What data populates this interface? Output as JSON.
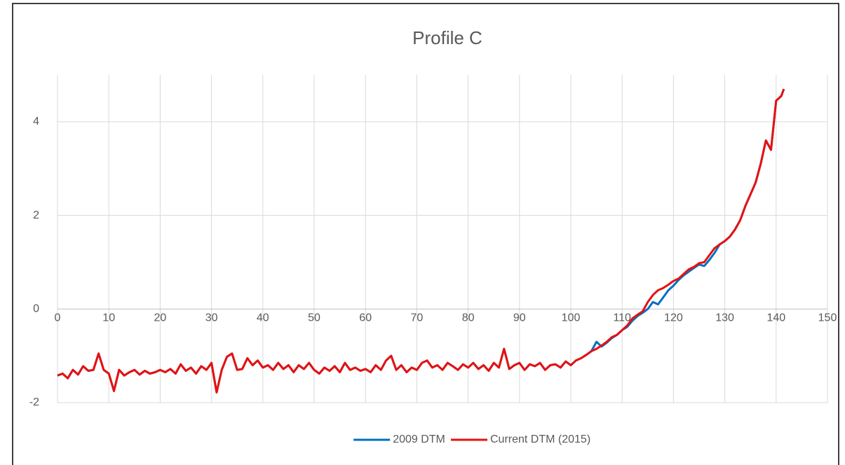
{
  "chart_data": {
    "type": "line",
    "title": "Profile C",
    "x": [
      0,
      1,
      2,
      3,
      4,
      5,
      6,
      7,
      8,
      9,
      10,
      11,
      12,
      13,
      14,
      15,
      16,
      17,
      18,
      19,
      20,
      21,
      22,
      23,
      24,
      25,
      26,
      27,
      28,
      29,
      30,
      31,
      32,
      33,
      34,
      35,
      36,
      37,
      38,
      39,
      40,
      41,
      42,
      43,
      44,
      45,
      46,
      47,
      48,
      49,
      50,
      51,
      52,
      53,
      54,
      55,
      56,
      57,
      58,
      59,
      60,
      61,
      62,
      63,
      64,
      65,
      66,
      67,
      68,
      69,
      70,
      71,
      72,
      73,
      74,
      75,
      76,
      77,
      78,
      79,
      80,
      81,
      82,
      83,
      84,
      85,
      86,
      87,
      88,
      89,
      90,
      91,
      92,
      93,
      94,
      95,
      96,
      97,
      98,
      99,
      100,
      101,
      102,
      103,
      104,
      105,
      106,
      107,
      108,
      109,
      110,
      111,
      112,
      113,
      114,
      115,
      116,
      117,
      118,
      119,
      120,
      121,
      122,
      123,
      124,
      125,
      126,
      127,
      128,
      129,
      130,
      131,
      132,
      133,
      134,
      135,
      136,
      137,
      138,
      139,
      140,
      141,
      141.5
    ],
    "series": [
      {
        "name": "2009 DTM",
        "color": "#0070c0",
        "values": [
          -1.42,
          -1.38,
          -1.48,
          -1.3,
          -1.4,
          -1.22,
          -1.32,
          -1.3,
          -0.95,
          -1.3,
          -1.38,
          -1.75,
          -1.3,
          -1.42,
          -1.35,
          -1.3,
          -1.4,
          -1.32,
          -1.38,
          -1.35,
          -1.3,
          -1.35,
          -1.28,
          -1.38,
          -1.18,
          -1.32,
          -1.25,
          -1.38,
          -1.22,
          -1.3,
          -1.15,
          -1.78,
          -1.3,
          -1.02,
          -0.95,
          -1.3,
          -1.28,
          -1.05,
          -1.2,
          -1.1,
          -1.25,
          -1.2,
          -1.3,
          -1.15,
          -1.28,
          -1.2,
          -1.35,
          -1.2,
          -1.28,
          -1.15,
          -1.3,
          -1.38,
          -1.25,
          -1.32,
          -1.22,
          -1.35,
          -1.15,
          -1.3,
          -1.25,
          -1.32,
          -1.28,
          -1.35,
          -1.2,
          -1.3,
          -1.1,
          -1.0,
          -1.3,
          -1.2,
          -1.35,
          -1.25,
          -1.3,
          -1.15,
          -1.1,
          -1.25,
          -1.2,
          -1.3,
          -1.15,
          -1.22,
          -1.3,
          -1.18,
          -1.25,
          -1.15,
          -1.28,
          -1.2,
          -1.32,
          -1.15,
          -1.25,
          -0.85,
          -1.28,
          -1.2,
          -1.15,
          -1.3,
          -1.18,
          -1.22,
          -1.15,
          -1.3,
          -1.2,
          -1.18,
          -1.25,
          -1.12,
          -1.2,
          -1.1,
          -1.05,
          -0.98,
          -0.9,
          -0.7,
          -0.8,
          -0.72,
          -0.62,
          -0.55,
          -0.45,
          -0.38,
          -0.25,
          -0.15,
          -0.08,
          0.0,
          0.15,
          0.1,
          0.25,
          0.4,
          0.5,
          0.62,
          0.72,
          0.8,
          0.88,
          0.95,
          0.92,
          1.05,
          1.2,
          1.38,
          1.45,
          1.55,
          1.7,
          1.9,
          2.2,
          2.45,
          2.7,
          3.1,
          3.6,
          3.4,
          4.45,
          4.55,
          4.7
        ]
      },
      {
        "name": "Current DTM (2015)",
        "color": "#e81010",
        "values": [
          -1.42,
          -1.38,
          -1.48,
          -1.3,
          -1.4,
          -1.22,
          -1.32,
          -1.3,
          -0.95,
          -1.3,
          -1.38,
          -1.75,
          -1.3,
          -1.42,
          -1.35,
          -1.3,
          -1.4,
          -1.32,
          -1.38,
          -1.35,
          -1.3,
          -1.35,
          -1.28,
          -1.38,
          -1.18,
          -1.32,
          -1.25,
          -1.38,
          -1.22,
          -1.3,
          -1.15,
          -1.78,
          -1.3,
          -1.02,
          -0.95,
          -1.3,
          -1.28,
          -1.05,
          -1.2,
          -1.1,
          -1.25,
          -1.2,
          -1.3,
          -1.15,
          -1.28,
          -1.2,
          -1.35,
          -1.2,
          -1.28,
          -1.15,
          -1.3,
          -1.38,
          -1.25,
          -1.32,
          -1.22,
          -1.35,
          -1.15,
          -1.3,
          -1.25,
          -1.32,
          -1.28,
          -1.35,
          -1.2,
          -1.3,
          -1.1,
          -1.0,
          -1.3,
          -1.2,
          -1.35,
          -1.25,
          -1.3,
          -1.15,
          -1.1,
          -1.25,
          -1.2,
          -1.3,
          -1.15,
          -1.22,
          -1.3,
          -1.18,
          -1.25,
          -1.15,
          -1.28,
          -1.2,
          -1.32,
          -1.15,
          -1.25,
          -0.85,
          -1.28,
          -1.2,
          -1.15,
          -1.3,
          -1.18,
          -1.22,
          -1.15,
          -1.3,
          -1.2,
          -1.18,
          -1.25,
          -1.12,
          -1.2,
          -1.1,
          -1.05,
          -0.98,
          -0.9,
          -0.85,
          -0.78,
          -0.7,
          -0.6,
          -0.55,
          -0.45,
          -0.35,
          -0.2,
          -0.12,
          -0.05,
          0.15,
          0.3,
          0.4,
          0.45,
          0.52,
          0.6,
          0.65,
          0.75,
          0.85,
          0.9,
          0.98,
          1.0,
          1.15,
          1.3,
          1.38,
          1.45,
          1.55,
          1.7,
          1.9,
          2.2,
          2.45,
          2.7,
          3.1,
          3.6,
          3.4,
          4.45,
          4.55,
          4.7
        ]
      }
    ],
    "xlim": [
      0,
      150
    ],
    "xticks": [
      0,
      10,
      20,
      30,
      40,
      50,
      60,
      70,
      80,
      90,
      100,
      110,
      120,
      130,
      140,
      150
    ],
    "ylim": [
      -2,
      5
    ],
    "yticks": [
      -2,
      0,
      2,
      4
    ],
    "grid": true,
    "legend": "bottom"
  }
}
